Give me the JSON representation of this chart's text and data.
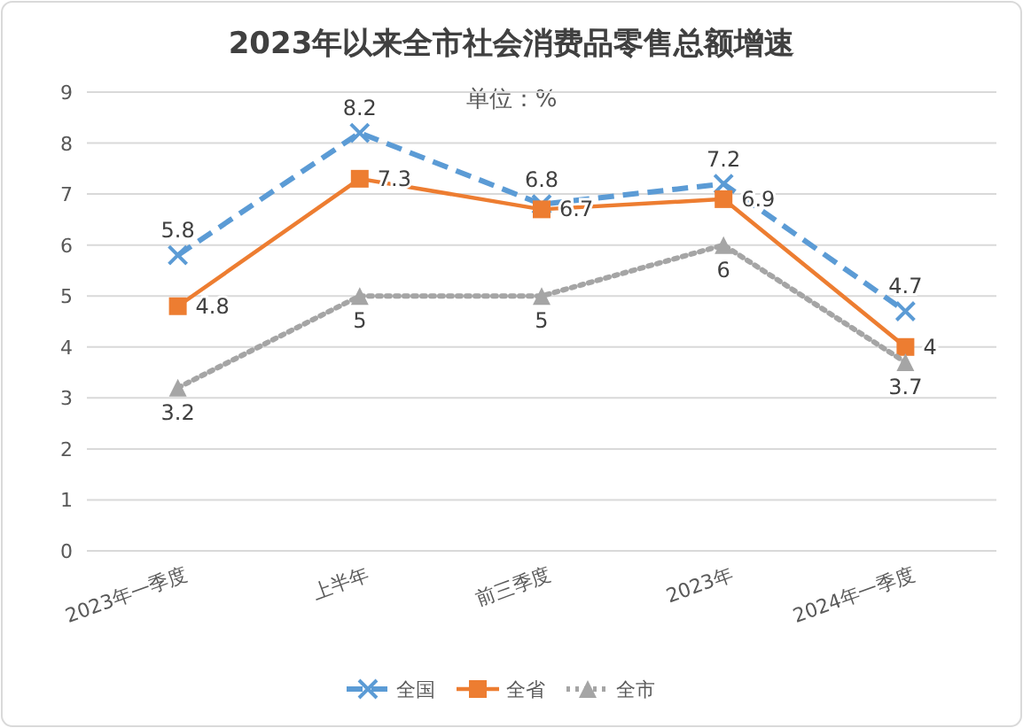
{
  "chart_data": {
    "type": "line",
    "title": "2023年以来全市社会消费品零售总额增速",
    "subtitle": "单位：%",
    "categories": [
      "2023年一季度",
      "上半年",
      "前三季度",
      "2023年",
      "2024年一季度"
    ],
    "series": [
      {
        "name": "全国",
        "color": "#5b9bd5",
        "values": [
          5.8,
          8.2,
          6.8,
          7.2,
          4.7
        ],
        "marker": "cross",
        "line_style": "dashed"
      },
      {
        "name": "全省",
        "color": "#ed7d31",
        "values": [
          4.8,
          7.3,
          6.7,
          6.9,
          4
        ],
        "marker": "square",
        "line_style": "solid"
      },
      {
        "name": "全市",
        "color": "#a5a5a5",
        "values": [
          3.2,
          5,
          5,
          6,
          3.7
        ],
        "marker": "triangle",
        "line_style": "dotted"
      }
    ],
    "ylim": [
      0,
      9
    ],
    "yticks": [
      0,
      1,
      2,
      3,
      4,
      5,
      6,
      7,
      8,
      9
    ],
    "grid": "y",
    "legend": "bottom",
    "data_labels": true
  }
}
